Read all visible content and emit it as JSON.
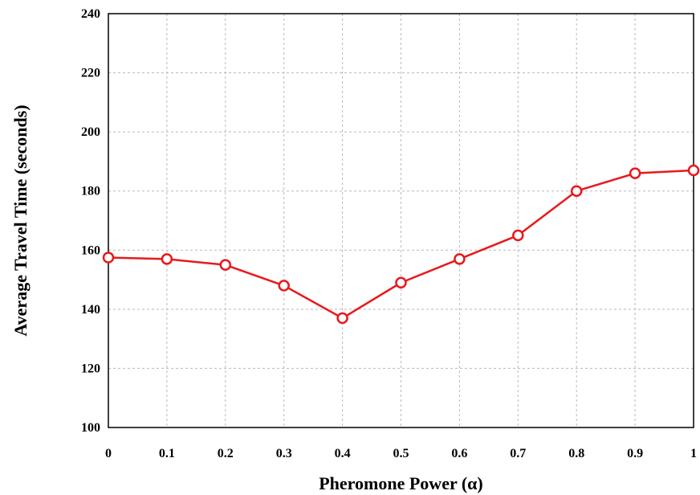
{
  "chart_data": {
    "type": "line",
    "xlabel": "Pheromone Power (α)",
    "ylabel": "Average Travel Time (seconds)",
    "x": [
      0,
      0.1,
      0.2,
      0.3,
      0.4,
      0.5,
      0.6,
      0.7,
      0.8,
      0.9,
      1
    ],
    "x_tick_labels": [
      "0",
      "0.1",
      "0.2",
      "0.3",
      "0.4",
      "0.5",
      "0.6",
      "0.7",
      "0.8",
      "0.9",
      "1"
    ],
    "xlim": [
      0,
      1
    ],
    "ylim": [
      100,
      240
    ],
    "y_ticks": [
      100,
      120,
      140,
      160,
      180,
      200,
      220,
      240
    ],
    "grid": true,
    "series": [
      {
        "values": [
          157.5,
          157,
          155,
          148,
          137,
          149,
          157,
          165,
          180,
          186,
          187
        ],
        "color": "#e8191c",
        "marker": "open-circle"
      }
    ]
  }
}
